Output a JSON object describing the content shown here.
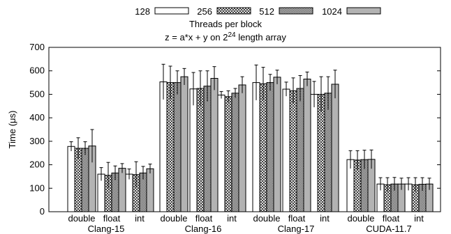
{
  "chart_data": {
    "type": "bar",
    "title": "z = a*x + y on 2",
    "title_superscript": "24",
    "title_suffix": " length array",
    "ylabel": "Time (μs)",
    "ylim": [
      0,
      700
    ],
    "yticks": [
      0,
      100,
      200,
      300,
      400,
      500,
      600,
      700
    ],
    "legend_title": "Threads per block",
    "legend_placement": "top-center",
    "grid": false,
    "series": [
      {
        "name": "128",
        "pattern": "white"
      },
      {
        "name": "256",
        "pattern": "crosshatch"
      },
      {
        "name": "512",
        "pattern": "dense-checker"
      },
      {
        "name": "1024",
        "pattern": "gray"
      }
    ],
    "groups": [
      {
        "name": "Clang-15",
        "categories": [
          {
            "label": "double",
            "values": [
              278,
              270,
              270,
              280
            ],
            "errors": [
              20,
              45,
              28,
              70
            ]
          },
          {
            "label": "float",
            "values": [
              160,
              155,
              165,
              185
            ],
            "errors": [
              28,
              55,
              30,
              20
            ]
          },
          {
            "label": "int",
            "values": [
              160,
              158,
              165,
              183
            ],
            "errors": [
              22,
              55,
              28,
              20
            ]
          }
        ]
      },
      {
        "name": "Clang-16",
        "categories": [
          {
            "label": "double",
            "values": [
              553,
              550,
              550,
              575
            ],
            "errors": [
              75,
              70,
              50,
              35
            ]
          },
          {
            "label": "float",
            "values": [
              523,
              525,
              535,
              568
            ],
            "errors": [
              70,
              75,
              65,
              50
            ]
          },
          {
            "label": "int",
            "values": [
              497,
              490,
              505,
              540
            ],
            "errors": [
              15,
              25,
              20,
              35
            ]
          }
        ]
      },
      {
        "name": "Clang-17",
        "categories": [
          {
            "label": "double",
            "values": [
              550,
              545,
              550,
              573
            ],
            "errors": [
              75,
              70,
              35,
              30
            ]
          },
          {
            "label": "float",
            "values": [
              522,
              515,
              525,
              565
            ],
            "errors": [
              30,
              55,
              55,
              30
            ]
          },
          {
            "label": "int",
            "values": [
              500,
              500,
              505,
              543
            ],
            "errors": [
              55,
              75,
              70,
              60
            ]
          }
        ]
      },
      {
        "name": "CUDA-11.7",
        "categories": [
          {
            "label": "double",
            "values": [
              222,
              220,
              222,
              223
            ],
            "errors": [
              38,
              40,
              40,
              40
            ]
          },
          {
            "label": "float",
            "values": [
              118,
              115,
              118,
              118
            ],
            "errors": [
              27,
              30,
              28,
              25
            ]
          },
          {
            "label": "int",
            "values": [
              118,
              115,
              117,
              118
            ],
            "errors": [
              27,
              30,
              28,
              25
            ]
          }
        ]
      }
    ]
  }
}
